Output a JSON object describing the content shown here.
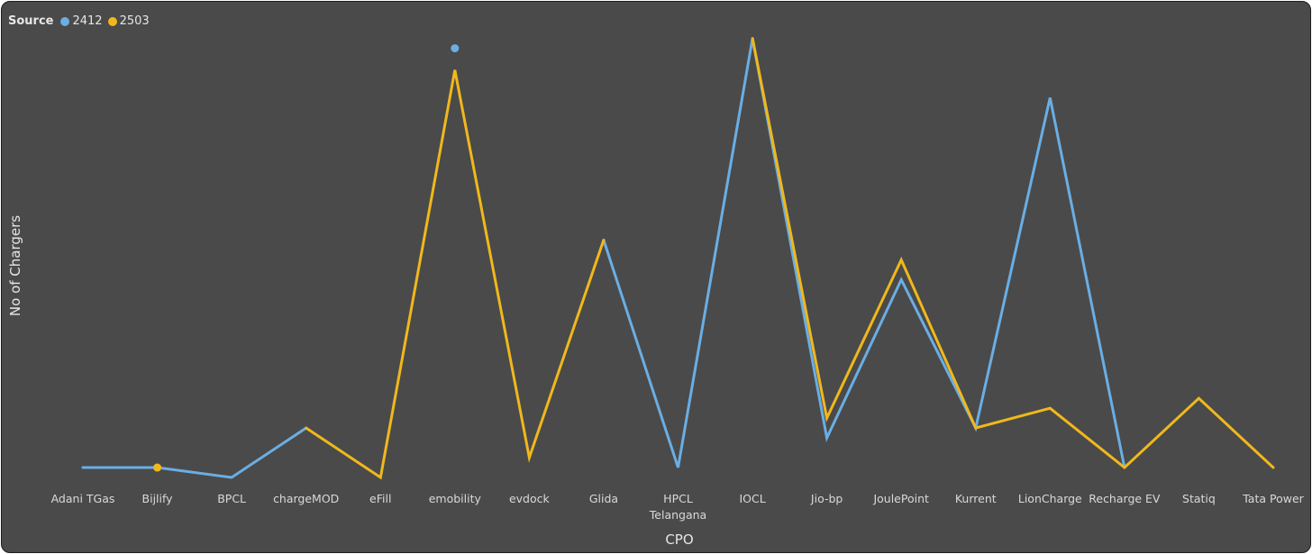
{
  "chart_data": {
    "type": "line",
    "title": "",
    "xlabel": "CPO",
    "ylabel": "No of Chargers",
    "legend": {
      "title": "Source",
      "placement": "top-left"
    },
    "grid": false,
    "ylim": [
      0,
      2200
    ],
    "categories": [
      "Adani TGas",
      "Bijlify",
      "BPCL",
      "chargeMOD",
      "eFill",
      "emobility",
      "evdock",
      "Glida",
      "HPCL Telangana",
      "IOCL",
      "Jio-bp",
      "JoulePoint",
      "Kurrent",
      "LionCharge",
      "Recharge EV",
      "Statiq",
      "Tata Power"
    ],
    "series": [
      {
        "name": "2412",
        "color": "#6aaee4",
        "values": [
          50,
          50,
          0,
          250,
          null,
          2170,
          null,
          1200,
          50,
          2220,
          200,
          1000,
          250,
          1920,
          50,
          null,
          null
        ]
      },
      {
        "name": "2503",
        "color": "#f0b81c",
        "values": [
          null,
          50,
          null,
          250,
          0,
          2060,
          100,
          1200,
          null,
          2220,
          300,
          1100,
          250,
          350,
          50,
          400,
          50
        ]
      }
    ]
  }
}
